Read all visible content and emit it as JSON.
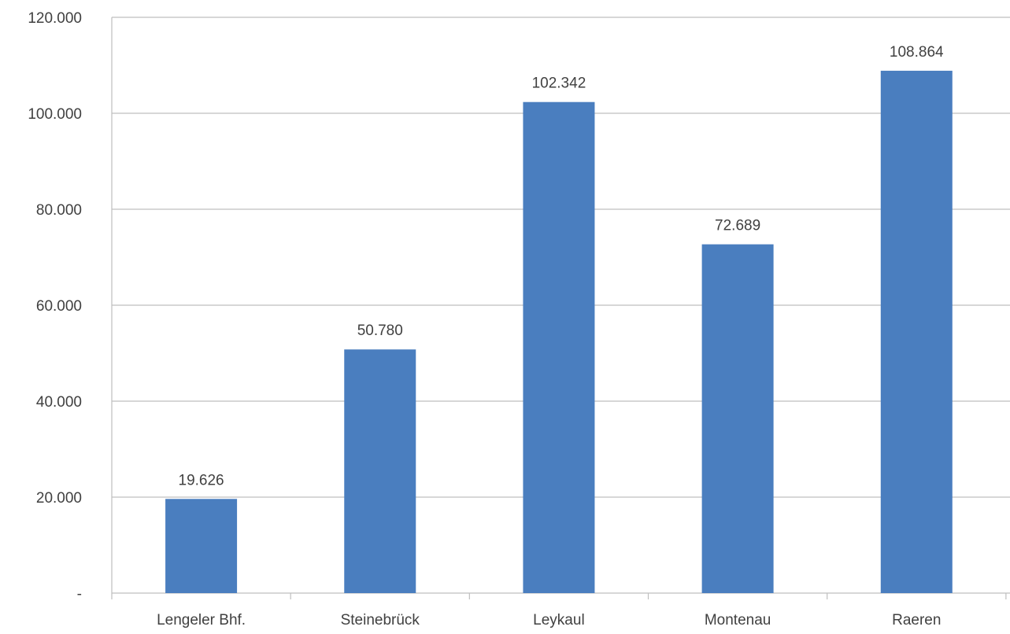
{
  "chart_data": {
    "type": "bar",
    "title": "",
    "xlabel": "",
    "ylabel": "",
    "categories": [
      "Lengeler Bhf.",
      "Steinebrück",
      "Leykaul",
      "Montenau",
      "Raeren"
    ],
    "values": [
      19626,
      50780,
      102342,
      72689,
      108864
    ],
    "value_labels": [
      "19.626",
      "50.780",
      "102.342",
      "72.689",
      "108.864"
    ],
    "ylim": [
      0,
      120000
    ],
    "y_ticks": [
      {
        "value": 0,
        "label": "-"
      },
      {
        "value": 20000,
        "label": "20.000"
      },
      {
        "value": 40000,
        "label": "40.000"
      },
      {
        "value": 60000,
        "label": "60.000"
      },
      {
        "value": 80000,
        "label": "80.000"
      },
      {
        "value": 100000,
        "label": "100.000"
      },
      {
        "value": 120000,
        "label": "120.000"
      }
    ],
    "grid": true,
    "legend": "none",
    "bar_color": "#4a7ebf",
    "grid_color": "#bfbfbf",
    "axis_color": "#bfbfbf"
  }
}
